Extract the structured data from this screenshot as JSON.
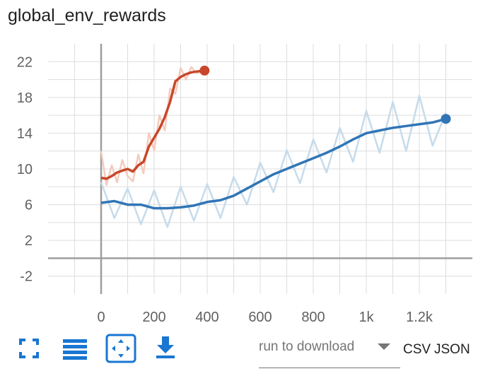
{
  "title": "global_env_rewards",
  "chart_data": {
    "type": "line",
    "title": "global_env_rewards",
    "xlabel": "",
    "ylabel": "",
    "xlim": [
      -200,
      1400
    ],
    "ylim": [
      -4,
      24
    ],
    "x_ticks": [
      0,
      200,
      400,
      600,
      800,
      1000,
      1200
    ],
    "x_tick_labels": [
      "0",
      "200",
      "400",
      "600",
      "800",
      "1k",
      "1.2k"
    ],
    "y_ticks": [
      -2,
      2,
      6,
      10,
      14,
      18,
      22
    ],
    "y_tick_labels": [
      "-2",
      "2",
      "6",
      "10",
      "14",
      "18",
      "22"
    ],
    "grid": true,
    "series": [
      {
        "color": "#c8472a",
        "raw_color": "#f4cbbd",
        "final_marker": true,
        "x": [
          0,
          20,
          40,
          60,
          80,
          100,
          120,
          140,
          160,
          180,
          200,
          220,
          240,
          260,
          280,
          300,
          320,
          340,
          360,
          390
        ],
        "values": [
          9.0,
          8.9,
          9.2,
          9.6,
          9.8,
          10.0,
          9.7,
          10.4,
          10.8,
          12.5,
          13.5,
          14.5,
          15.8,
          17.5,
          19.8,
          20.3,
          20.6,
          20.8,
          20.9,
          21.0
        ],
        "raw_values": [
          12.0,
          8.2,
          10.4,
          8.5,
          11.0,
          9.2,
          8.6,
          11.6,
          9.5,
          14.0,
          12.1,
          16.0,
          14.3,
          19.0,
          18.4,
          21.3,
          20.0,
          21.4,
          20.7,
          21.0
        ]
      },
      {
        "color": "#3075b6",
        "raw_color": "#c6dbeb",
        "final_marker": true,
        "x": [
          0,
          50,
          100,
          150,
          200,
          250,
          300,
          350,
          400,
          450,
          500,
          550,
          600,
          650,
          700,
          750,
          800,
          850,
          900,
          950,
          1000,
          1050,
          1100,
          1150,
          1200,
          1250,
          1300
        ],
        "values": [
          6.2,
          6.4,
          6.0,
          6.0,
          5.6,
          5.6,
          5.7,
          5.9,
          6.3,
          6.5,
          7.0,
          7.8,
          8.6,
          9.4,
          10.0,
          10.6,
          11.2,
          11.8,
          12.5,
          13.3,
          14.0,
          14.3,
          14.6,
          14.8,
          15.0,
          15.2,
          15.6
        ],
        "raw_values": [
          8.5,
          4.5,
          7.8,
          3.8,
          7.6,
          3.5,
          8.0,
          4.2,
          8.3,
          4.5,
          9.1,
          6.0,
          10.7,
          7.4,
          12.1,
          8.4,
          13.3,
          9.6,
          14.6,
          10.8,
          16.5,
          11.8,
          17.5,
          12.0,
          18.2,
          12.6,
          16.3
        ]
      }
    ]
  },
  "toolbar": {
    "expand_icon": "fullscreen-icon",
    "data_table_icon": "list-icon",
    "fit_domain_icon": "fit-domain-icon",
    "download_icon": "download-icon",
    "run_select_placeholder": "run to download",
    "csv_label": "CSV",
    "json_label": "JSON"
  },
  "colors": {
    "accent": "#1976d2",
    "grid": "#dddddd",
    "axis": "#9e9e9e"
  }
}
